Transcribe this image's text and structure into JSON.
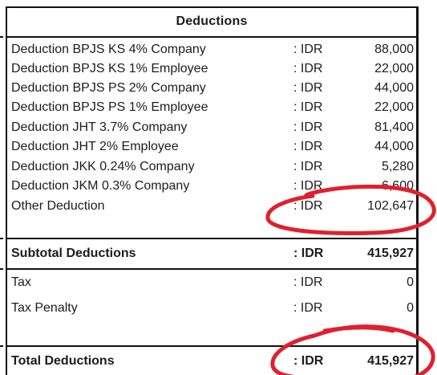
{
  "section_title": "Deductions",
  "items": [
    {
      "label": "Deduction BPJS KS 4% Company",
      "currency": ": IDR",
      "value": "88,000"
    },
    {
      "label": "Deduction BPJS KS 1% Employee",
      "currency": ": IDR",
      "value": "22,000"
    },
    {
      "label": "Deduction BPJS PS 2% Company",
      "currency": ": IDR",
      "value": "44,000"
    },
    {
      "label": "Deduction BPJS PS 1% Employee",
      "currency": ": IDR",
      "value": "22,000"
    },
    {
      "label": "Deduction JHT 3.7% Company",
      "currency": ": IDR",
      "value": "81,400"
    },
    {
      "label": "Deduction JHT 2% Employee",
      "currency": ": IDR",
      "value": "44,000"
    },
    {
      "label": "Deduction JKK 0.24% Company",
      "currency": ": IDR",
      "value": "5,280"
    },
    {
      "label": "Deduction JKM 0.3% Company",
      "currency": ": IDR",
      "value": "6,600"
    },
    {
      "label": "Other Deduction",
      "currency": ": IDR",
      "value": "102,647"
    }
  ],
  "subtotal": {
    "label": "Subtotal Deductions",
    "currency": ": IDR",
    "value": "415,927"
  },
  "tax": {
    "label": "Tax",
    "currency": ": IDR",
    "value": "0"
  },
  "tax_penalty": {
    "label": "Tax Penalty",
    "currency": ": IDR",
    "value": "0"
  },
  "total": {
    "label": "Total Deductions",
    "currency": ": IDR",
    "value": "415,927"
  },
  "annotation_color": "#e0202e"
}
